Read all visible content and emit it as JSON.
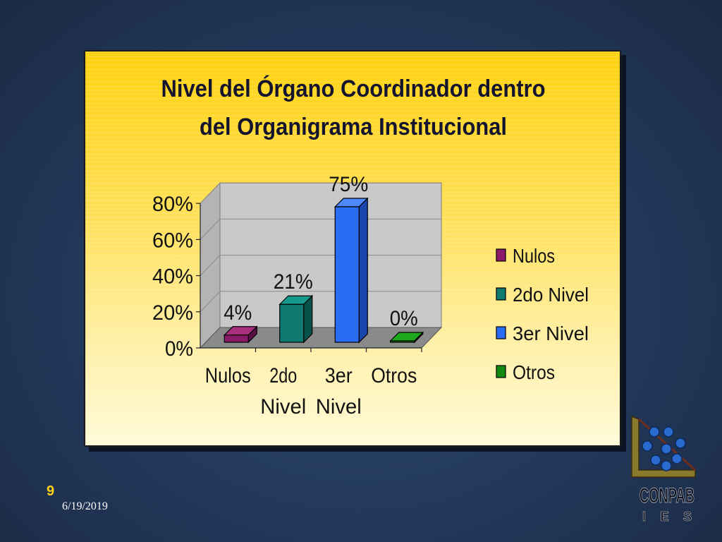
{
  "slide": {
    "number": "9",
    "date": "6/19/2019"
  },
  "logo": {
    "text": "CONPAB",
    "subtext": "IES"
  },
  "chart_data": {
    "type": "bar",
    "title": "Nivel del Órgano Coordinador dentro del Organigrama Institucional",
    "title_lines": [
      "Nivel del Órgano Coordinador dentro",
      "del Organigrama Institucional"
    ],
    "categories": [
      "Nulos",
      "2do Nivel",
      "3er Nivel",
      "Otros"
    ],
    "category_label_lines": [
      [
        "Nulos"
      ],
      [
        "2do",
        "Nivel"
      ],
      [
        "3er",
        "Nivel"
      ],
      [
        "Otros"
      ]
    ],
    "values": [
      4,
      21,
      75,
      0
    ],
    "data_labels": [
      "4%",
      "21%",
      "75%",
      "0%"
    ],
    "y_ticks": [
      "0%",
      "20%",
      "40%",
      "60%",
      "80%"
    ],
    "ylim": [
      0,
      80
    ],
    "grid": true,
    "three_d": true,
    "legend_position": "right",
    "legend": [
      "Nulos",
      "2do Nivel",
      "3er Nivel",
      "Otros"
    ],
    "colors": [
      "#8b1a6b",
      "#0f7b70",
      "#2a6df4",
      "#128a12"
    ],
    "side_colors": [
      "#5a0f45",
      "#08524b",
      "#1847b0",
      "#0a5a0a"
    ],
    "top_colors": [
      "#a8307f",
      "#169a8d",
      "#4d88ff",
      "#1ea81e"
    ]
  },
  "colors": {
    "background": "#243b5e",
    "panel": "#ffd20f",
    "plot_wall": "#c9c9c9",
    "plot_floor": "#8a8a8a",
    "slide_number": "#ffd21a"
  }
}
